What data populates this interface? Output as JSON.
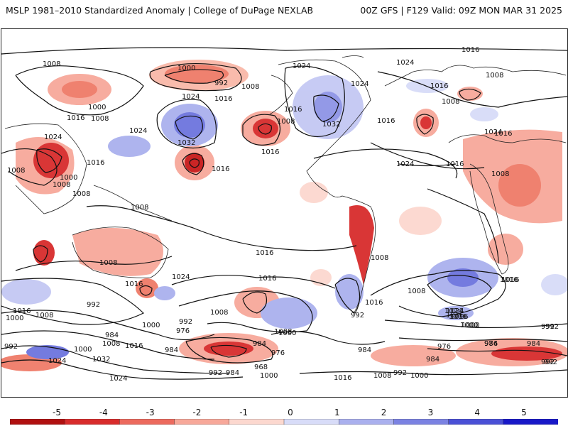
{
  "header": {
    "title": "MSLP 1981–2010 Standardized Anomaly | College of DuPage NEXLAB",
    "run_info": "00Z GFS | F129 Valid: 09Z MON MAR 31 2025"
  },
  "colorbar": {
    "ticks": [
      "-5",
      "-4",
      "-3",
      "-2",
      "-1",
      "0",
      "1",
      "2",
      "3",
      "4",
      "5"
    ],
    "colors": [
      "#b01010",
      "#d82c2c",
      "#ec6a5e",
      "#f7a89a",
      "#fcd8cf",
      "#ffffff",
      "#d8dcf8",
      "#aab0ee",
      "#7b82e2",
      "#4a50d6",
      "#1818c8"
    ]
  },
  "isobars": [
    {
      "label": "1016",
      "id": "iso-1016-top"
    },
    {
      "label": "1024",
      "id": "iso-1024-natl"
    },
    {
      "label": "1008",
      "id": "iso-1008-nw"
    },
    {
      "label": "1000",
      "id": "iso-1000-npac"
    },
    {
      "label": "992",
      "id": "iso-992-npac"
    },
    {
      "label": "1008",
      "id": "iso-1008-alaska"
    },
    {
      "label": "1024",
      "id": "iso-1024-canada"
    },
    {
      "label": "1024",
      "id": "iso-1024-hudson"
    },
    {
      "label": "1008",
      "id": "iso-1008-greenland"
    },
    {
      "label": "1016",
      "id": "iso-1016-greenland"
    },
    {
      "label": "1000",
      "id": "iso-1000-siberia"
    },
    {
      "label": "1008",
      "id": "iso-1008-siberia"
    },
    {
      "label": "1016",
      "id": "iso-1016-kam"
    },
    {
      "label": "1024",
      "id": "iso-1024-kam"
    },
    {
      "label": "1016",
      "id": "iso-1016-bering"
    },
    {
      "label": "1016",
      "id": "iso-1016-canada"
    },
    {
      "label": "1032",
      "id": "iso-1032-canada"
    },
    {
      "label": "1016",
      "id": "iso-1016-atl"
    },
    {
      "label": "1008",
      "id": "iso-1008-scand"
    },
    {
      "label": "1024",
      "id": "iso-1024-asia"
    },
    {
      "label": "1032",
      "id": "iso-1032-npac"
    },
    {
      "label": "1024",
      "id": "iso-1024-npac"
    },
    {
      "label": "1008",
      "id": "iso-1008-gulf"
    },
    {
      "label": "1016",
      "id": "iso-1016-gulf"
    },
    {
      "label": "1016",
      "id": "iso-1016-midpac"
    },
    {
      "label": "1024",
      "id": "iso-1024-midatl"
    },
    {
      "label": "1016",
      "id": "iso-1016-eatl"
    },
    {
      "label": "1024",
      "id": "iso-1024-europe"
    },
    {
      "label": "1016",
      "id": "iso-1016-europe"
    },
    {
      "label": "1008",
      "id": "iso-1008-africa"
    },
    {
      "label": "1016",
      "id": "iso-1016-china"
    },
    {
      "label": "1008",
      "id": "iso-1008-china"
    },
    {
      "label": "1000",
      "id": "iso-1000-china"
    },
    {
      "label": "1008",
      "id": "iso-1008-india"
    },
    {
      "label": "1008",
      "id": "iso-1008-se-asia"
    },
    {
      "label": "1008",
      "id": "iso-1008-equ"
    },
    {
      "label": "1008",
      "id": "iso-1008-aus"
    },
    {
      "label": "1016",
      "id": "iso-1016-sepac"
    },
    {
      "label": "1016",
      "id": "iso-1016-spac"
    },
    {
      "label": "1008",
      "id": "iso-1008-sam"
    },
    {
      "label": "1016",
      "id": "iso-1016-chile"
    },
    {
      "label": "1024",
      "id": "iso-1024-tasman"
    },
    {
      "label": "1016",
      "id": "iso-1016-tasman"
    },
    {
      "label": "1016",
      "id": "iso-1016-satl"
    },
    {
      "label": "1016",
      "id": "iso-1016-saf"
    },
    {
      "label": "1008",
      "id": "iso-1008-satl"
    },
    {
      "label": "1024",
      "id": "iso-1024-sind"
    },
    {
      "label": "1016",
      "id": "iso-1016-sind"
    },
    {
      "label": "1000",
      "id": "iso-1000-sind"
    },
    {
      "label": "992",
      "id": "iso-992-sind"
    },
    {
      "label": "1016",
      "id": "iso-1016-left"
    },
    {
      "label": "1008",
      "id": "iso-1008-left"
    },
    {
      "label": "1000",
      "id": "iso-1000-left"
    },
    {
      "label": "992",
      "id": "iso-992-sw"
    },
    {
      "label": "984",
      "id": "iso-984-sw"
    },
    {
      "label": "1000",
      "id": "iso-1000-sw"
    },
    {
      "label": "1008",
      "id": "iso-1008-sw"
    },
    {
      "label": "1016",
      "id": "iso-1016-sw"
    },
    {
      "label": "992",
      "id": "iso-992-left2"
    },
    {
      "label": "1032",
      "id": "iso-1032-ant"
    },
    {
      "label": "1024",
      "id": "iso-1024-ant"
    },
    {
      "label": "1024",
      "id": "iso-1024-ant2"
    },
    {
      "label": "1008",
      "id": "iso-1008-spac2"
    },
    {
      "label": "992",
      "id": "iso-992-spac2"
    },
    {
      "label": "984",
      "id": "iso-984-sw2"
    },
    {
      "label": "976",
      "id": "iso-976-spac"
    },
    {
      "label": "1000",
      "id": "iso-1000-spac"
    },
    {
      "label": "984",
      "id": "iso-984-spac"
    },
    {
      "label": "992",
      "id": "iso-992-spac3"
    },
    {
      "label": "968",
      "id": "iso-968-spac"
    },
    {
      "label": "976",
      "id": "iso-976-spac2"
    },
    {
      "label": "984",
      "id": "iso-984-spac3"
    },
    {
      "label": "1000",
      "id": "iso-1000-spac3"
    },
    {
      "label": "992",
      "id": "iso-992-bottom"
    },
    {
      "label": "984",
      "id": "iso-984-bottom"
    },
    {
      "label": "1000",
      "id": "iso-1000-bottom"
    },
    {
      "label": "992",
      "id": "iso-992-drake"
    },
    {
      "label": "984",
      "id": "iso-984-drake"
    },
    {
      "label": "1016",
      "id": "iso-1016-bottom"
    },
    {
      "label": "1008",
      "id": "iso-1008-bottom"
    },
    {
      "label": "992",
      "id": "iso-992-bottom2"
    },
    {
      "label": "1000",
      "id": "iso-1000-bottom2"
    },
    {
      "label": "1008",
      "id": "iso-1008-sind2"
    },
    {
      "label": "984",
      "id": "iso-984-sind"
    },
    {
      "label": "976",
      "id": "iso-976-sind"
    },
    {
      "label": "984",
      "id": "iso-984-sind2"
    },
    {
      "label": "976",
      "id": "iso-976-sind2"
    },
    {
      "label": "992",
      "id": "iso-992-sind3"
    },
    {
      "label": "992",
      "id": "iso-992-right"
    },
    {
      "label": "1024",
      "id": "iso-1024-sind3"
    },
    {
      "label": "1016",
      "id": "iso-1016-sind3"
    },
    {
      "label": "1000",
      "id": "iso-1000-sind3"
    },
    {
      "label": "1016",
      "id": "iso-1016-africa2"
    }
  ]
}
